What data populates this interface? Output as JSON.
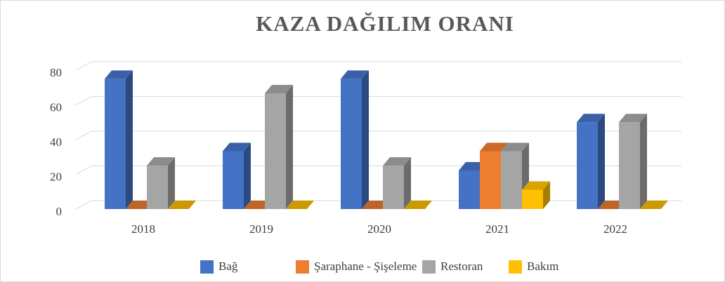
{
  "chart_data": {
    "type": "bar3d",
    "title": "KAZA DAĞILIM ORANI",
    "categories": [
      "2018",
      "2019",
      "2020",
      "2021",
      "2022"
    ],
    "series": [
      {
        "name": "Bağ",
        "color": "#4472c4",
        "values": [
          75,
          33.33,
          75,
          22.22,
          50
        ]
      },
      {
        "name": "Şaraphane - Şişeleme",
        "color": "#ed7d31",
        "values": [
          0,
          0,
          0,
          33.33,
          0
        ]
      },
      {
        "name": "Restoran",
        "color": "#a5a5a5",
        "values": [
          25,
          66.67,
          25,
          33.33,
          50
        ]
      },
      {
        "name": "Bakım",
        "color": "#ffc000",
        "values": [
          0,
          0,
          0,
          11.11,
          0
        ]
      }
    ],
    "ylim": [
      0,
      80
    ],
    "yticks": [
      0,
      20,
      40,
      60,
      80
    ],
    "grid": true,
    "legend": "bottom"
  }
}
